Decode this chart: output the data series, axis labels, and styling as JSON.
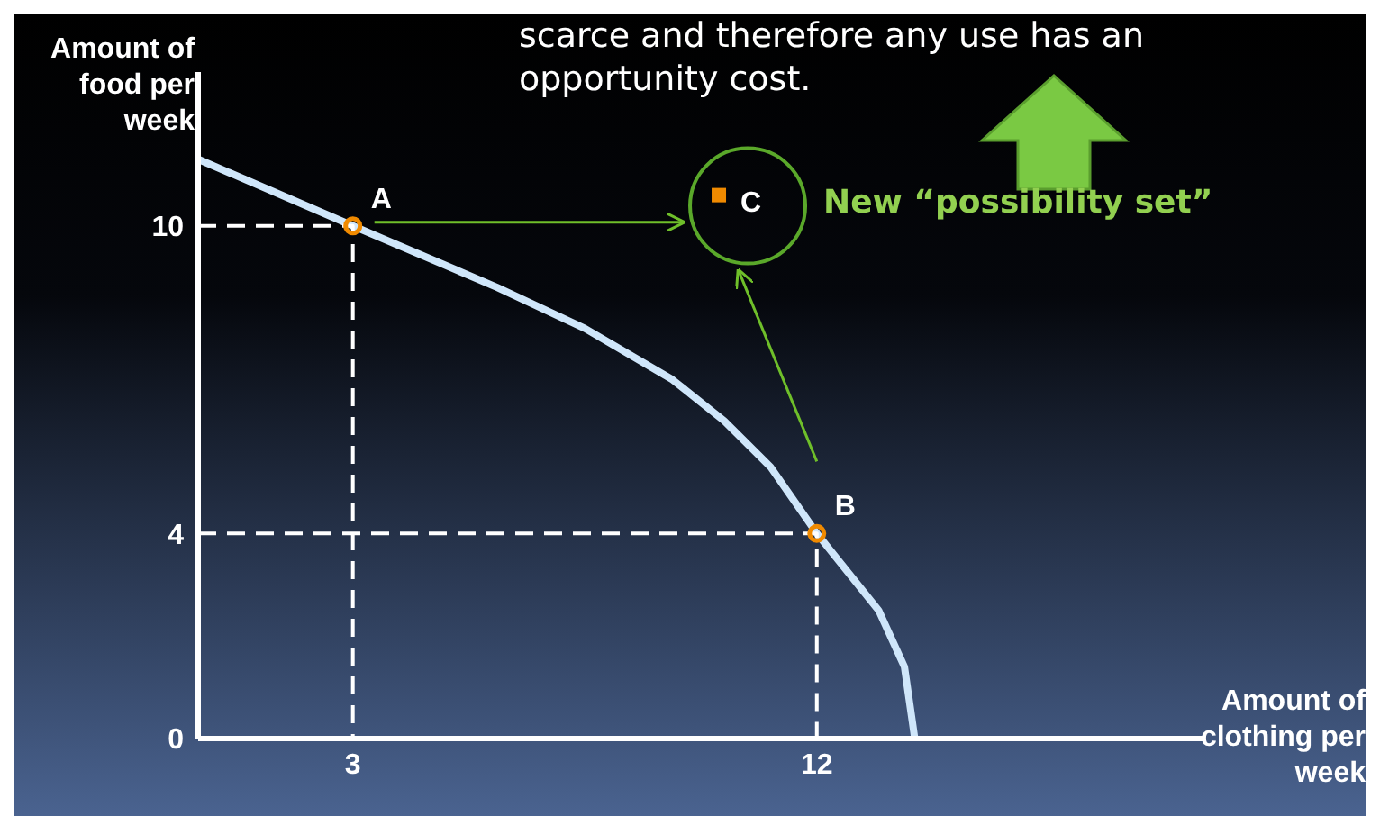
{
  "chart_data": {
    "type": "line",
    "xlabel": "Amount of clothing per week",
    "ylabel": "Amount of food per week",
    "annotations": [
      "scarce and therefore any use has an opportunity cost.",
      "New “possibility set”"
    ],
    "xlim": [
      0,
      19.5
    ],
    "ylim": [
      0,
      13
    ],
    "xticks": [
      3,
      12
    ],
    "yticks": [
      0,
      4,
      10
    ],
    "grid": false,
    "legend": false,
    "series": [
      {
        "color": "#cfe6fa",
        "x": [
          0,
          3,
          5.8,
          7.5,
          9.2,
          10.2,
          11.1,
          12,
          13.2,
          13.7,
          13.9
        ],
        "values": [
          11.3,
          10,
          8.8,
          8,
          7,
          6.2,
          5.3,
          4,
          2.5,
          1.4,
          0
        ]
      },
      {
        "color": "#ffffff",
        "line_style": "dashed",
        "x": [
          0,
          3,
          3
        ],
        "values": [
          10,
          10,
          0
        ]
      },
      {
        "color": "#ffffff",
        "line_style": "dashed",
        "x": [
          0,
          12,
          12
        ],
        "values": [
          4,
          4,
          0
        ]
      },
      {
        "type": "scatter",
        "name": "A",
        "color": "#f08a00",
        "marker": "circle",
        "x": [
          3
        ],
        "values": [
          10
        ]
      },
      {
        "type": "scatter",
        "name": "B",
        "color": "#f08a00",
        "marker": "circle",
        "x": [
          12
        ],
        "values": [
          4
        ]
      },
      {
        "type": "scatter",
        "name": "C",
        "color": "#f08a00",
        "marker": "square",
        "x": [
          10.1
        ],
        "values": [
          10.6
        ]
      }
    ]
  }
}
